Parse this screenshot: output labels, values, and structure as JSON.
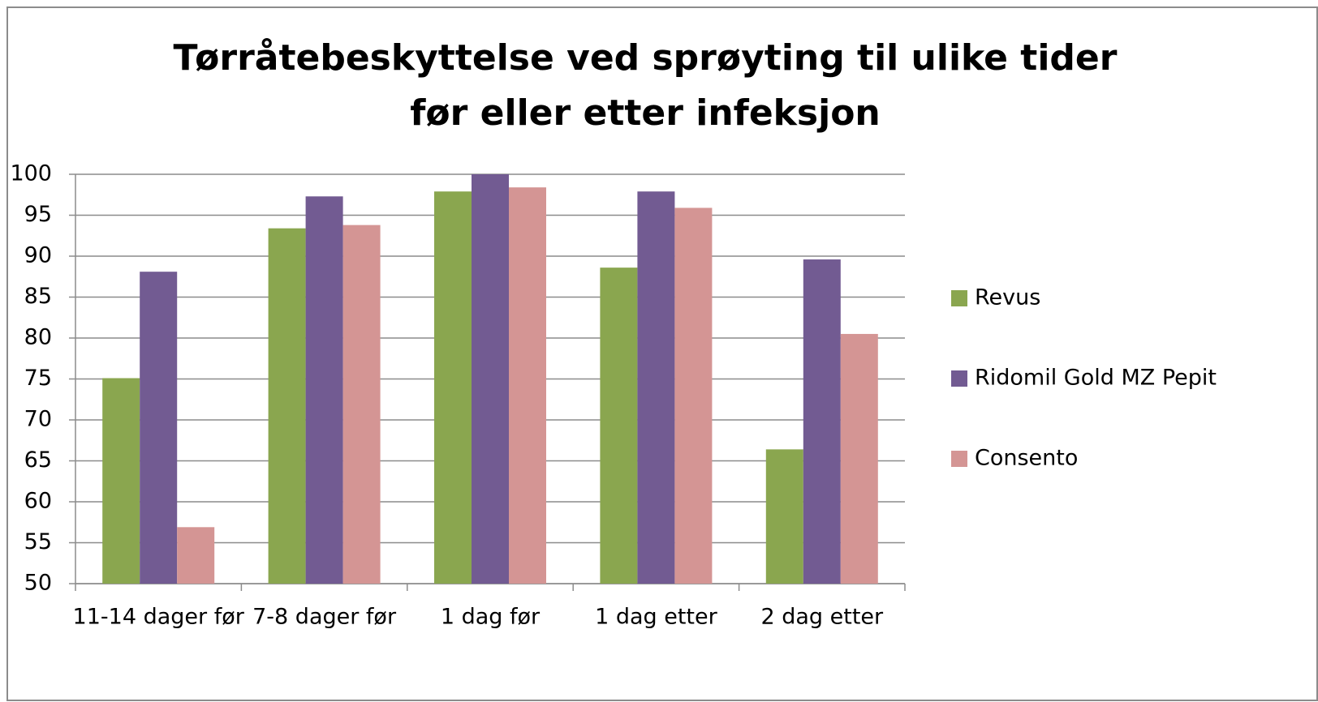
{
  "chart_data": {
    "type": "bar",
    "title": [
      "Tørråtebeskyttelse ved sprøyting til ulike tider",
      "før eller etter infeksjon"
    ],
    "categories": [
      "11-14 dager før",
      "7-8 dager før",
      "1 dag før",
      "1 dag etter",
      "2 dag etter"
    ],
    "series": [
      {
        "name": "Revus",
        "color": "#8aa64f",
        "values": [
          75.1,
          93.4,
          97.9,
          88.6,
          66.4
        ]
      },
      {
        "name": "Ridomil Gold MZ Pepit",
        "color": "#725b92",
        "values": [
          88.1,
          97.3,
          100,
          97.9,
          89.6
        ]
      },
      {
        "name": "Consento",
        "color": "#d49594",
        "values": [
          56.9,
          93.8,
          98.4,
          95.9,
          80.5
        ]
      }
    ],
    "ylim": [
      50,
      100
    ],
    "yticks": [
      50,
      55,
      60,
      65,
      70,
      75,
      80,
      85,
      90,
      95,
      100
    ],
    "grid": true,
    "legend": "right"
  }
}
